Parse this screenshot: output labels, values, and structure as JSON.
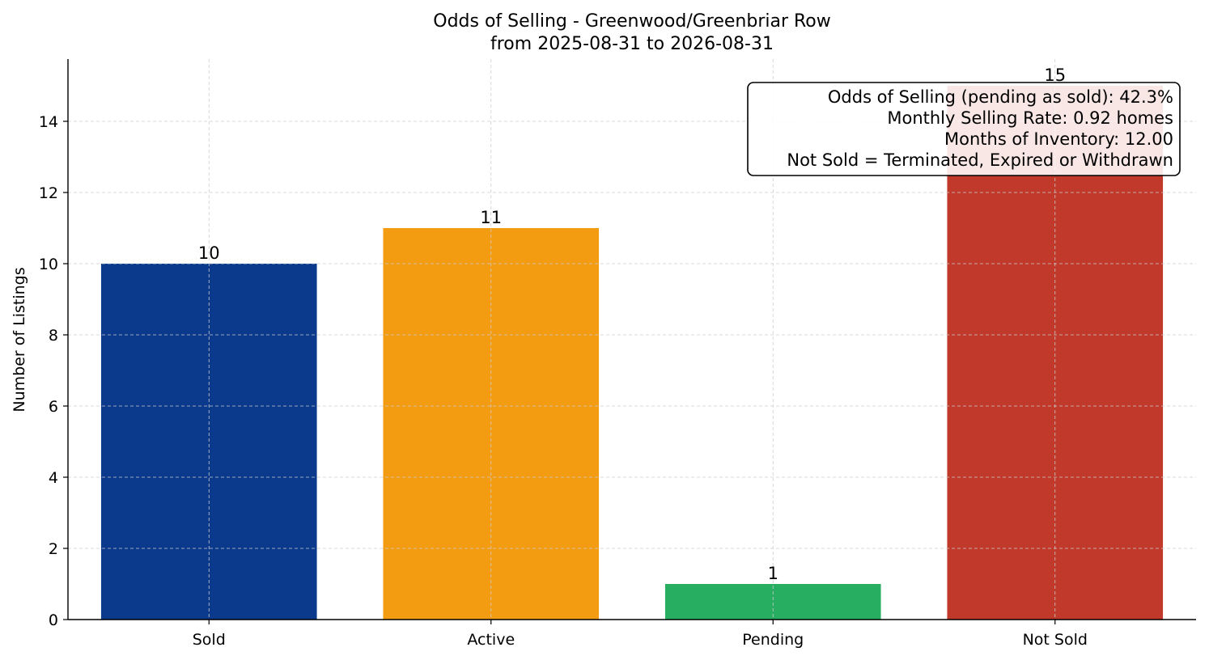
{
  "chart_data": {
    "type": "bar",
    "title_line1": "Odds of Selling - Greenwood/Greenbriar Row",
    "title_line2": "from 2025-08-31 to 2026-08-31",
    "xlabel": "",
    "ylabel": "Number of Listings",
    "categories": [
      "Sold",
      "Active",
      "Pending",
      "Not Sold"
    ],
    "values": [
      10,
      11,
      1,
      15
    ],
    "colors": [
      "#0b3a8c",
      "#f39c12",
      "#27ae60",
      "#c0392b"
    ],
    "ylim": [
      0,
      15.75
    ],
    "yticks": [
      0,
      2,
      4,
      6,
      8,
      10,
      12,
      14
    ],
    "grid": true,
    "annotation": {
      "placement": "top-right",
      "lines": [
        "Odds of Selling (pending as sold): 42.3%",
        "Monthly Selling Rate: 0.92 homes",
        "Months of Inventory: 12.00",
        "Not Sold = Terminated, Expired or Withdrawn"
      ]
    }
  }
}
